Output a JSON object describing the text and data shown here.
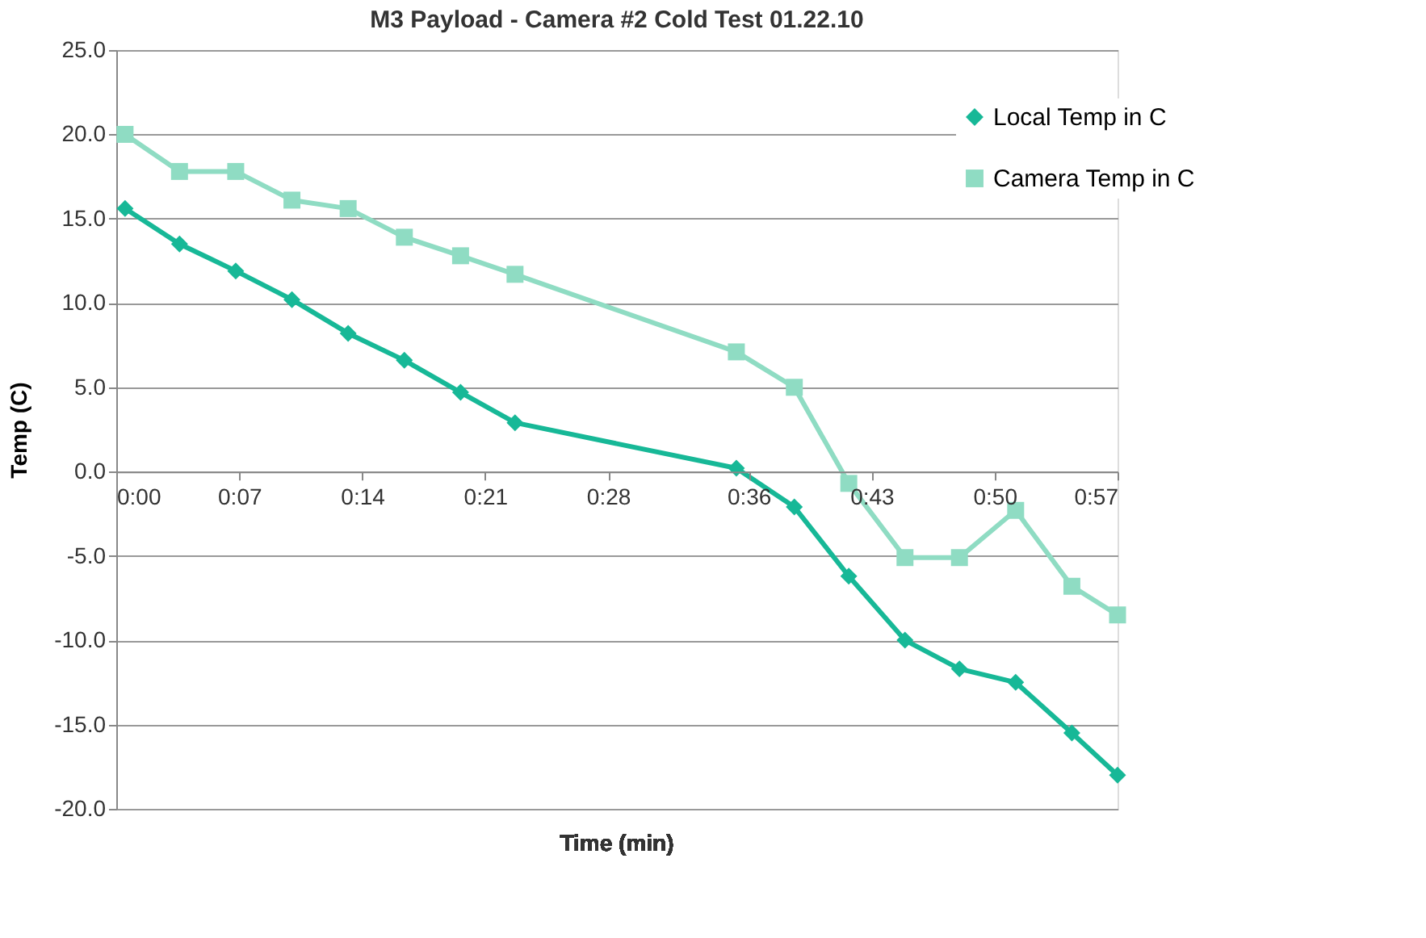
{
  "chart_data": {
    "type": "line",
    "title": "M3 Payload - Camera #2 Cold Test 01.22.10",
    "xlabel": "Time (min)",
    "ylabel": "Temp (C)",
    "xlim": [
      0,
      57
    ],
    "xticks": [
      {
        "value": 0,
        "label": "0:00"
      },
      {
        "value": 7,
        "label": "0:07"
      },
      {
        "value": 14,
        "label": "0:14"
      },
      {
        "value": 21,
        "label": "0:21"
      },
      {
        "value": 28,
        "label": "0:28"
      },
      {
        "value": 36,
        "label": "0:36"
      },
      {
        "value": 43,
        "label": "0:43"
      },
      {
        "value": 50,
        "label": "0:50"
      },
      {
        "value": 57,
        "label": "0:57"
      }
    ],
    "ylim": [
      -20,
      25
    ],
    "yticks": [
      {
        "value": -20,
        "label": "-20.0"
      },
      {
        "value": -15,
        "label": "-15.0"
      },
      {
        "value": -10,
        "label": "-10.0"
      },
      {
        "value": -5,
        "label": "-5.0"
      },
      {
        "value": 0,
        "label": "0.0"
      },
      {
        "value": 5,
        "label": "5.0"
      },
      {
        "value": 10,
        "label": "10.0"
      },
      {
        "value": 15,
        "label": "15.0"
      },
      {
        "value": 20,
        "label": "20.0"
      },
      {
        "value": 25,
        "label": "25.0"
      }
    ],
    "grid": "y",
    "legend": "top right",
    "line_style": "solid",
    "x": [
      0.5,
      3.6,
      6.8,
      10.0,
      13.2,
      16.4,
      19.6,
      22.7,
      35.3,
      38.6,
      41.7,
      44.9,
      48.0,
      51.2,
      54.4,
      57
    ],
    "series": [
      {
        "name": "Local Temp in C",
        "color": "#17b897",
        "marker": "diamond",
        "values": [
          15.6,
          13.5,
          11.9,
          10.2,
          8.2,
          6.6,
          4.7,
          2.9,
          0.2,
          -2.1,
          -6.2,
          -10.0,
          -11.7,
          -12.5,
          -15.5,
          -18.0
        ]
      },
      {
        "name": "Camera Temp in C",
        "color": "#8fdcc3",
        "marker": "square",
        "values": [
          20.0,
          17.8,
          17.8,
          16.1,
          15.6,
          13.9,
          12.8,
          11.7,
          7.1,
          5.0,
          -0.7,
          -5.1,
          -5.1,
          -2.3,
          -6.8,
          -8.5
        ]
      }
    ]
  }
}
